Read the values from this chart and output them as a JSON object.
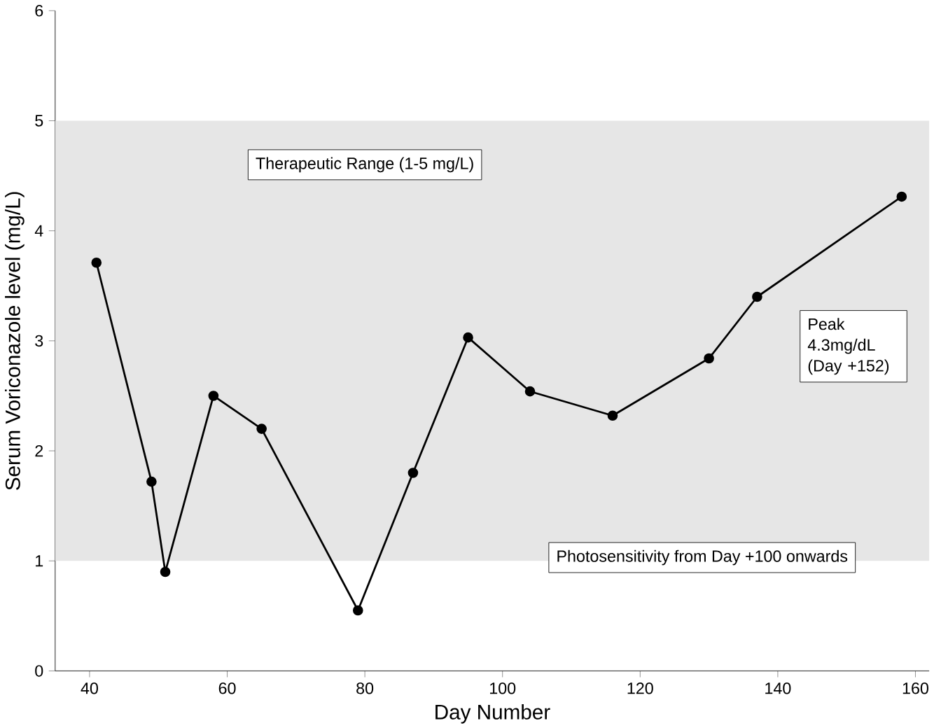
{
  "chart_data": {
    "type": "line",
    "xlabel": "Day Number",
    "ylabel": "Serum Voriconazole level (mg/L)",
    "x": [
      41,
      49,
      51,
      58,
      65,
      79,
      87,
      95,
      104,
      116,
      130,
      137,
      158
    ],
    "series": [
      {
        "color": "#000000",
        "values": [
          3.71,
          1.72,
          0.9,
          2.5,
          2.2,
          0.55,
          1.8,
          3.03,
          2.54,
          2.32,
          2.84,
          3.4,
          4.31
        ]
      }
    ],
    "xlim": [
      35,
      162
    ],
    "ylim": [
      0,
      6
    ],
    "xticks": [
      40,
      60,
      80,
      100,
      120,
      140,
      160
    ],
    "yticks": [
      0,
      1,
      2,
      3,
      4,
      5,
      6
    ],
    "bands": [
      {
        "axis": "y",
        "from": 1,
        "to": 5,
        "label": "Therapeutic Range (1-5 mg/L)",
        "color": "#e6e6e6"
      }
    ],
    "annotations": [
      "Peak 4.3mg/dL (Day +152)",
      "Photosensitivity from Day +100 onwards"
    ],
    "marker": "circle",
    "line_style": "solid",
    "grid": false
  }
}
